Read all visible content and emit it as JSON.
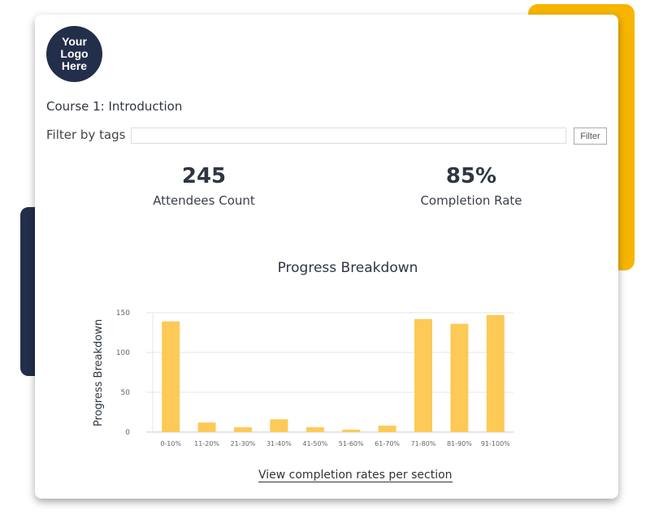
{
  "logo": {
    "text": "Your\nLogo\nHere"
  },
  "course_title": "Course 1: Introduction",
  "filter": {
    "label": "Filter by tags",
    "value": "",
    "button": "Filter"
  },
  "stats": [
    {
      "value": "245",
      "label": "Attendees Count"
    },
    {
      "value": "85%",
      "label": "Completion Rate"
    }
  ],
  "link": "View completion rates per section",
  "colors": {
    "accent": "#f7b500",
    "navy": "#232e4a",
    "bar": "#fdca57"
  },
  "chart_data": {
    "type": "bar",
    "title": "Progress Breakdown",
    "xlabel": "",
    "ylabel": "Progress Breakdown",
    "categories": [
      "0-10%",
      "11-20%",
      "21-30%",
      "31-40%",
      "41-50%",
      "51-60%",
      "61-70%",
      "71-80%",
      "81-90%",
      "91-100%"
    ],
    "values": [
      139,
      12,
      6,
      16,
      6,
      3,
      8,
      142,
      136,
      147
    ],
    "ylim": [
      0,
      150
    ],
    "yticks": [
      0,
      50,
      100,
      150
    ],
    "grid": true,
    "legend": "none"
  }
}
